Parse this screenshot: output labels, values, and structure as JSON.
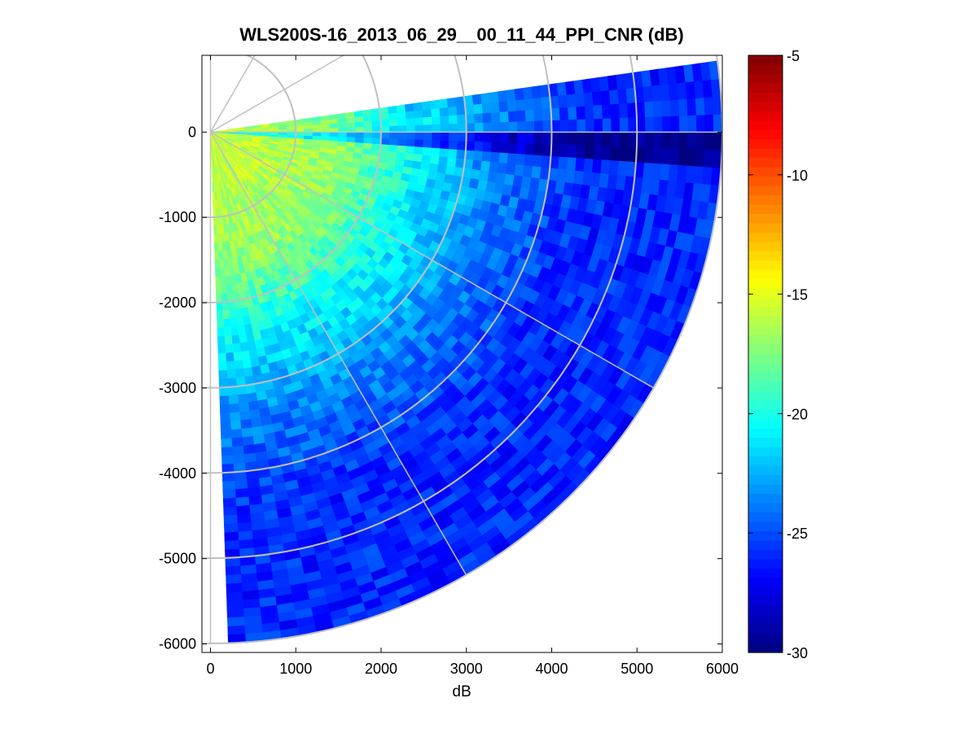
{
  "chart_data": {
    "type": "heatmap",
    "subtype": "polar-ppi-sector",
    "title": "WLS200S-16_2013_06_29__00_11_44_PPI_CNR (dB)",
    "xlabel": "dB",
    "ylabel": "",
    "xlim": [
      -100,
      6000
    ],
    "ylim": [
      -6100,
      900
    ],
    "xticks": [
      "0",
      "1000",
      "2000",
      "3000",
      "4000",
      "5000",
      "6000"
    ],
    "xtick_values": [
      0,
      1000,
      2000,
      3000,
      4000,
      5000,
      6000
    ],
    "yticks": [
      "0",
      "-1000",
      "-2000",
      "-3000",
      "-4000",
      "-5000",
      "-6000"
    ],
    "ytick_values": [
      0,
      -1000,
      -2000,
      -3000,
      -4000,
      -5000,
      -6000
    ],
    "scan": {
      "azimuth_start_deg_ccw_from_east": 8,
      "azimuth_end_deg_ccw_from_east": -88,
      "range_min": 0,
      "range_max": 6000
    },
    "blocked_sector_deg": [
      -5,
      0
    ],
    "approx_cnr_by_range": [
      {
        "range": 500,
        "cnr": -16
      },
      {
        "range": 1500,
        "cnr": -17
      },
      {
        "range": 2500,
        "cnr": -21
      },
      {
        "range": 3500,
        "cnr": -24
      },
      {
        "range": 4500,
        "cnr": -26
      },
      {
        "range": 5500,
        "cnr": -26
      }
    ],
    "polar_grid": {
      "rings": [
        1000,
        2000,
        3000,
        4000,
        5000,
        6000
      ],
      "spokes_deg": [
        90,
        60,
        30,
        0,
        -30,
        -60,
        -90
      ]
    },
    "colorbar": {
      "min": -30,
      "max": -5,
      "ticks": [
        "-5",
        "-10",
        "-15",
        "-20",
        "-25",
        "-30"
      ],
      "tick_values": [
        -5,
        -10,
        -15,
        -20,
        -25,
        -30
      ],
      "colormap": "jet"
    },
    "grid": true
  }
}
